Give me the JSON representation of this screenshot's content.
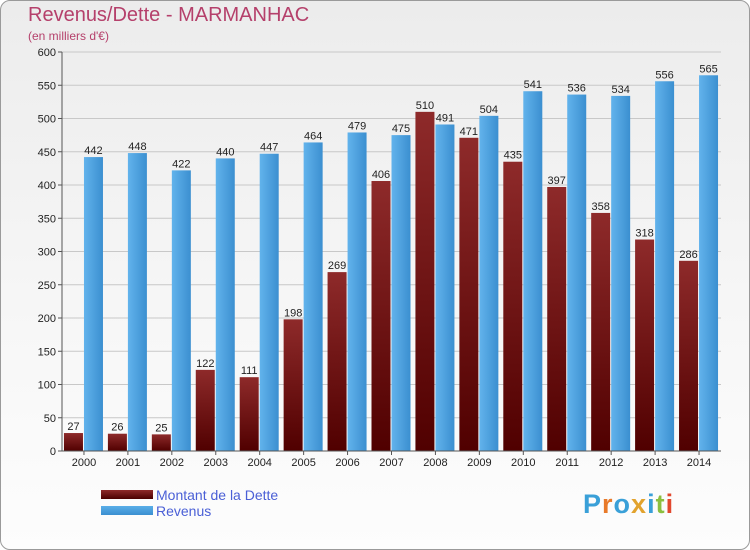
{
  "header": {
    "title": "Revenus/Dette - MARMANHAC",
    "subtitle": "(en milliers d'€)"
  },
  "logo": {
    "text": "Proxiti",
    "letters": [
      "P",
      "r",
      "o",
      "x",
      "i",
      "t",
      "i"
    ],
    "colors": [
      "#3aa0d8",
      "#e87a2a",
      "#3aa0d8",
      "#e2a32e",
      "#3aa0d8",
      "#8cbf3f",
      "#e2482e"
    ]
  },
  "chart_data": {
    "type": "bar",
    "categories": [
      "2000",
      "2001",
      "2002",
      "2003",
      "2004",
      "2005",
      "2006",
      "2007",
      "2008",
      "2009",
      "2010",
      "2011",
      "2012",
      "2013",
      "2014"
    ],
    "series": [
      {
        "name": "Montant de la Dette",
        "color": "#7a1f1f",
        "values": [
          27,
          26,
          25,
          122,
          111,
          198,
          269,
          406,
          510,
          471,
          435,
          397,
          358,
          318,
          286
        ],
        "labels": [
          "27",
          "26",
          "25",
          "122",
          "111",
          "198",
          "269",
          "406",
          "510",
          "471",
          "435",
          "397",
          "358",
          "318",
          "286"
        ]
      },
      {
        "name": "Revenus",
        "color": "#4aa0e0",
        "values": [
          442,
          448,
          422,
          440,
          447,
          464,
          479,
          475,
          491,
          504,
          541,
          536,
          534,
          556,
          565
        ],
        "labels": [
          "442",
          "448",
          "422",
          "440",
          "447",
          "464",
          "479",
          "475",
          "491",
          "504",
          "541",
          "536",
          "534",
          "556",
          "565"
        ]
      }
    ],
    "yticks": [
      "0",
      "50",
      "100",
      "150",
      "200",
      "250",
      "300",
      "350",
      "400",
      "450",
      "500",
      "550",
      "600"
    ],
    "ylim": [
      0,
      600
    ],
    "grid": true,
    "legend_position": "bottom-left"
  }
}
